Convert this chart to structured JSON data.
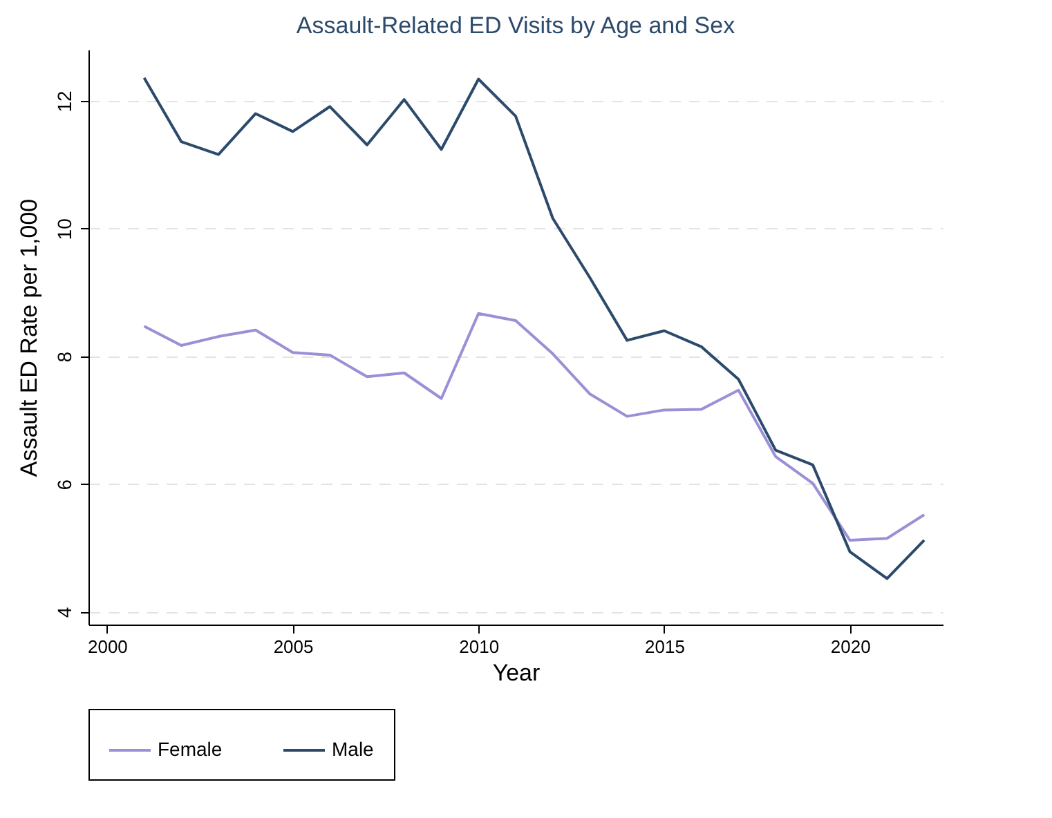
{
  "chart_data": {
    "type": "line",
    "title": "Assault-Related ED Visits by Age and Sex",
    "xlabel": "Year",
    "ylabel": "Assault ED Rate per 1,000",
    "x": [
      2001,
      2002,
      2003,
      2004,
      2005,
      2006,
      2007,
      2008,
      2009,
      2010,
      2011,
      2012,
      2013,
      2014,
      2015,
      2016,
      2017,
      2018,
      2019,
      2020,
      2021,
      2022
    ],
    "series": [
      {
        "name": "Female",
        "color": "#9b8fd6",
        "values": [
          8.47,
          8.17,
          8.31,
          8.41,
          8.06,
          8.02,
          7.68,
          7.74,
          7.34,
          8.67,
          8.56,
          8.04,
          7.41,
          7.06,
          7.16,
          7.17,
          7.47,
          6.43,
          6.01,
          5.12,
          5.15,
          5.52
        ]
      },
      {
        "name": "Male",
        "color": "#2c4a6b",
        "values": [
          12.36,
          11.36,
          11.16,
          11.8,
          11.52,
          11.91,
          11.31,
          12.02,
          11.24,
          12.34,
          11.76,
          10.16,
          9.23,
          8.25,
          8.4,
          8.15,
          7.64,
          6.53,
          6.3,
          4.94,
          4.52,
          5.12
        ]
      }
    ],
    "xlim": [
      1999.5,
      2022.5
    ],
    "xticks": [
      2000,
      2005,
      2010,
      2015,
      2020
    ],
    "ylim": [
      3.8,
      12.8
    ],
    "yticks": [
      4,
      6,
      8,
      10,
      12
    ],
    "grid": "y",
    "legend": "bottom",
    "line_style": "solid",
    "marker": "none"
  }
}
